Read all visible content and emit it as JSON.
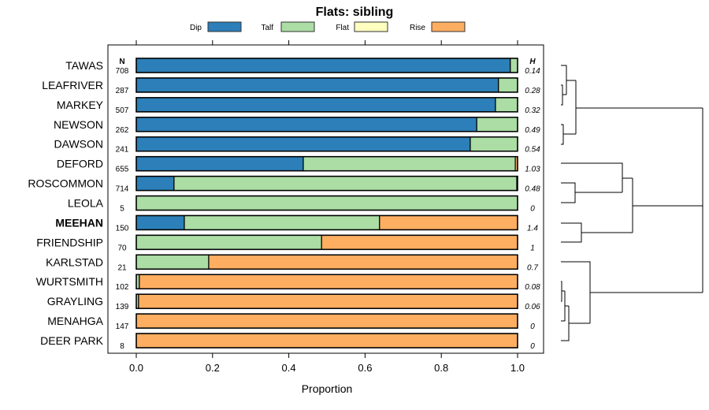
{
  "chart_data": {
    "type": "bar",
    "orientation": "horizontal",
    "stacked": true,
    "title": "Flats: sibling",
    "xlabel": "Proportion",
    "ylabel": "",
    "xlim": [
      0,
      1
    ],
    "xticks": [
      "0.0",
      "0.2",
      "0.4",
      "0.6",
      "0.8",
      "1.0"
    ],
    "legend": {
      "position": "top",
      "entries": [
        "Dip",
        "Talf",
        "Flat",
        "Rise"
      ]
    },
    "colors": {
      "Dip": "#2c7fb8",
      "Talf": "#abdda4",
      "Flat": "#ffffbf",
      "Rise": "#fdae61"
    },
    "n_header": "N",
    "h_header": "H",
    "categories": [
      "TAWAS",
      "LEAFRIVER",
      "MARKEY",
      "NEWSON",
      "DAWSON",
      "DEFORD",
      "ROSCOMMON",
      "LEOLA",
      "MEEHAN",
      "FRIENDSHIP",
      "KARLSTAD",
      "WURTSMITH",
      "GRAYLING",
      "MENAHGA",
      "DEER PARK"
    ],
    "highlighted": "MEEHAN",
    "N": [
      "708",
      "287",
      "507",
      "262",
      "241",
      "655",
      "714",
      "5",
      "150",
      "70",
      "21",
      "102",
      "139",
      "147",
      "8"
    ],
    "H": [
      "0.14",
      "0.28",
      "0.32",
      "0.49",
      "0.54",
      "1.03",
      "0.48",
      "0",
      "1.4",
      "1",
      "0.7",
      "0.08",
      "0.06",
      "0",
      "0"
    ],
    "series": [
      {
        "name": "Dip",
        "values": [
          0.981,
          0.95,
          0.942,
          0.893,
          0.876,
          0.438,
          0.099,
          0,
          0.126,
          0,
          0,
          0,
          0,
          0,
          0
        ]
      },
      {
        "name": "Talf",
        "values": [
          0.019,
          0.05,
          0.058,
          0.107,
          0.124,
          0.556,
          0.899,
          1,
          0.512,
          0.486,
          0.19,
          0.008,
          0.006,
          0,
          0
        ]
      },
      {
        "name": "Flat",
        "values": [
          0,
          0,
          0,
          0,
          0,
          0,
          0,
          0,
          0,
          0,
          0,
          0,
          0,
          0,
          0
        ]
      },
      {
        "name": "Rise",
        "values": [
          0,
          0,
          0,
          0,
          0,
          0.006,
          0.002,
          0,
          0.362,
          0.514,
          0.81,
          0.992,
          0.994,
          1,
          1
        ]
      }
    ]
  }
}
